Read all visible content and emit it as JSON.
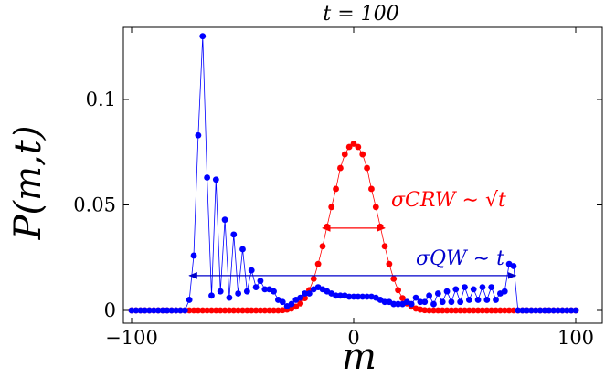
{
  "chart_data": {
    "type": "scatter",
    "title": "t = 100",
    "xlabel": "m",
    "ylabel": "P(m,t)",
    "xlim": [
      -100,
      100
    ],
    "ylim": [
      0,
      0.135
    ],
    "xticks": [
      -100,
      0,
      100
    ],
    "xtick_labels": [
      "−100",
      "0",
      "100"
    ],
    "yticks": [
      0,
      0.05,
      0.1
    ],
    "ytick_labels": [
      "0",
      "0.05",
      "0.1"
    ],
    "grid": false,
    "series": [
      {
        "color": "#0000ff",
        "x": [
          -100,
          -98,
          -96,
          -94,
          -92,
          -90,
          -88,
          -86,
          -84,
          -82,
          -80,
          -78,
          -76,
          -74,
          -72,
          -70,
          -68,
          -66,
          -64,
          -62,
          -60,
          -58,
          -56,
          -54,
          -52,
          -50,
          -48,
          -46,
          -44,
          -42,
          -40,
          -38,
          -36,
          -34,
          -32,
          -30,
          -28,
          -26,
          -24,
          -22,
          -20,
          -18,
          -16,
          -14,
          -12,
          -10,
          -8,
          -6,
          -4,
          -2,
          0,
          2,
          4,
          6,
          8,
          10,
          12,
          14,
          16,
          18,
          20,
          22,
          24,
          26,
          28,
          30,
          32,
          34,
          36,
          38,
          40,
          42,
          44,
          46,
          48,
          50,
          52,
          54,
          56,
          58,
          60,
          62,
          64,
          66,
          68,
          70,
          72,
          74,
          76,
          78,
          80,
          82,
          84,
          86,
          88,
          90,
          92,
          94,
          96,
          98,
          100
        ],
        "values": [
          0,
          0,
          0,
          0,
          0,
          0,
          0,
          0,
          0,
          0,
          0,
          0,
          0,
          0.005,
          0.026,
          0.083,
          0.13,
          0.063,
          0.007,
          0.062,
          0.009,
          0.043,
          0.006,
          0.036,
          0.008,
          0.029,
          0.009,
          0.019,
          0.011,
          0.014,
          0.01,
          0.01,
          0.009,
          0.005,
          0.004,
          0.002,
          0.003,
          0.005,
          0.006,
          0.008,
          0.008,
          0.01,
          0.011,
          0.01,
          0.009,
          0.008,
          0.007,
          0.007,
          0.007,
          0.0065,
          0.0065,
          0.0065,
          0.0065,
          0.0065,
          0.0065,
          0.006,
          0.005,
          0.004,
          0.004,
          0.003,
          0.003,
          0.003,
          0.004,
          0.003,
          0.006,
          0.004,
          0.004,
          0.007,
          0.003,
          0.008,
          0.004,
          0.009,
          0.004,
          0.01,
          0.004,
          0.011,
          0.005,
          0.01,
          0.005,
          0.011,
          0.005,
          0.011,
          0.005,
          0.008,
          0.009,
          0.022,
          0.021,
          0,
          0,
          0,
          0,
          0,
          0,
          0,
          0,
          0,
          0,
          0,
          0,
          0,
          0
        ]
      },
      {
        "color": "#ff0000",
        "x": [
          -100,
          -98,
          -96,
          -94,
          -92,
          -90,
          -88,
          -86,
          -84,
          -82,
          -80,
          -78,
          -76,
          -74,
          -72,
          -70,
          -68,
          -66,
          -64,
          -62,
          -60,
          -58,
          -56,
          -54,
          -52,
          -50,
          -48,
          -46,
          -44,
          -42,
          -40,
          -38,
          -36,
          -34,
          -32,
          -30,
          -28,
          -26,
          -24,
          -22,
          -20,
          -18,
          -16,
          -14,
          -12,
          -10,
          -8,
          -6,
          -4,
          -2,
          0,
          2,
          4,
          6,
          8,
          10,
          12,
          14,
          16,
          18,
          20,
          22,
          24,
          26,
          28,
          30,
          32,
          34,
          36,
          38,
          40,
          42,
          44,
          46,
          48,
          50,
          52,
          54,
          56,
          58,
          60,
          62,
          64,
          66,
          68,
          70,
          72,
          74,
          76,
          78,
          80,
          82,
          84,
          86,
          88,
          90,
          92,
          94,
          96,
          98,
          100
        ],
        "values": [
          0,
          0,
          0,
          0,
          0,
          0,
          0,
          0,
          0,
          0,
          0,
          0,
          0,
          0,
          0,
          0,
          0,
          0,
          0,
          0,
          0,
          0,
          0,
          0,
          0,
          0,
          0,
          0,
          0,
          0,
          0,
          0,
          0,
          0,
          0.0001,
          0.0004,
          0.0009,
          0.0018,
          0.0033,
          0.0058,
          0.0096,
          0.015,
          0.022,
          0.0304,
          0.0397,
          0.049,
          0.0576,
          0.0675,
          0.074,
          0.0775,
          0.079,
          0.0775,
          0.074,
          0.0675,
          0.0576,
          0.049,
          0.0397,
          0.0304,
          0.022,
          0.015,
          0.0096,
          0.0058,
          0.0033,
          0.0018,
          0.0009,
          0.0004,
          0.0001,
          0,
          0,
          0,
          0,
          0,
          0,
          0,
          0,
          0,
          0,
          0,
          0,
          0,
          0,
          0,
          0,
          0,
          0,
          0,
          0,
          0,
          0,
          0,
          0,
          0,
          0,
          0,
          0,
          0,
          0,
          0,
          0,
          0,
          0
        ]
      }
    ],
    "annotations": [
      {
        "text": "σCRW ∼ √t",
        "color": "#ff0000",
        "arrow_x": [
          -14,
          14
        ],
        "arrow_y": 0.039
      },
      {
        "text": "σQW ∼ t",
        "color": "#0000cc",
        "arrow_x": [
          -74,
          73
        ],
        "arrow_y": 0.0165
      }
    ]
  }
}
